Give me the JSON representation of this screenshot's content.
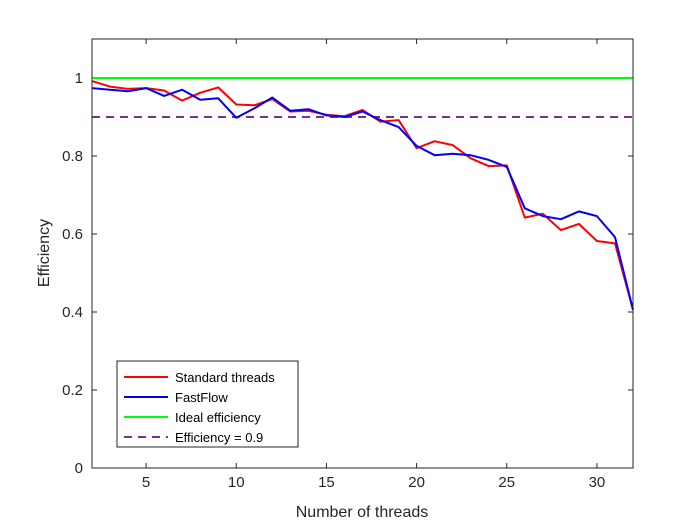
{
  "chart_data": {
    "type": "line",
    "xlabel": "Number of threads",
    "ylabel": "Efficiency",
    "xlim": [
      2,
      32
    ],
    "ylim": [
      0,
      1.1
    ],
    "xticks": [
      5,
      10,
      15,
      20,
      25,
      30
    ],
    "yticks": [
      0,
      0.2,
      0.4,
      0.6,
      0.8,
      1
    ],
    "ytick_labels": [
      "0",
      "0.2",
      "0.4",
      "0.6",
      "0.8",
      "1"
    ],
    "grid": false,
    "legend_position": "bottom-left",
    "x": [
      2,
      3,
      4,
      5,
      6,
      7,
      8,
      9,
      10,
      11,
      12,
      13,
      14,
      15,
      16,
      17,
      18,
      19,
      20,
      21,
      22,
      23,
      24,
      25,
      26,
      27,
      28,
      29,
      30,
      31,
      32
    ],
    "series": [
      {
        "name": "Standard threads",
        "color": "#ff0000",
        "style": "solid",
        "values": [
          0.992,
          0.978,
          0.972,
          0.974,
          0.968,
          0.942,
          0.962,
          0.976,
          0.932,
          0.93,
          0.946,
          0.914,
          0.916,
          0.906,
          0.902,
          0.918,
          0.888,
          0.892,
          0.82,
          0.838,
          0.828,
          0.794,
          0.774,
          0.776,
          0.642,
          0.652,
          0.61,
          0.626,
          0.582,
          0.576,
          0.406
        ]
      },
      {
        "name": "FastFlow",
        "color": "#0000ff",
        "style": "solid",
        "values": [
          0.974,
          0.97,
          0.966,
          0.974,
          0.954,
          0.97,
          0.944,
          0.948,
          0.898,
          0.922,
          0.95,
          0.916,
          0.92,
          0.904,
          0.9,
          0.914,
          0.892,
          0.874,
          0.826,
          0.802,
          0.806,
          0.802,
          0.79,
          0.772,
          0.666,
          0.646,
          0.638,
          0.658,
          0.646,
          0.592,
          0.406
        ]
      },
      {
        "name": "Ideal efficiency",
        "color": "#00ff00",
        "style": "solid",
        "values": [
          1,
          1,
          1,
          1,
          1,
          1,
          1,
          1,
          1,
          1,
          1,
          1,
          1,
          1,
          1,
          1,
          1,
          1,
          1,
          1,
          1,
          1,
          1,
          1,
          1,
          1,
          1,
          1,
          1,
          1,
          1
        ]
      },
      {
        "name": "Efficiency = 0.9",
        "color": "#7e2f8e",
        "style": "dashed",
        "values": [
          0.9,
          0.9,
          0.9,
          0.9,
          0.9,
          0.9,
          0.9,
          0.9,
          0.9,
          0.9,
          0.9,
          0.9,
          0.9,
          0.9,
          0.9,
          0.9,
          0.9,
          0.9,
          0.9,
          0.9,
          0.9,
          0.9,
          0.9,
          0.9,
          0.9,
          0.9,
          0.9,
          0.9,
          0.9,
          0.9,
          0.9
        ]
      }
    ]
  }
}
